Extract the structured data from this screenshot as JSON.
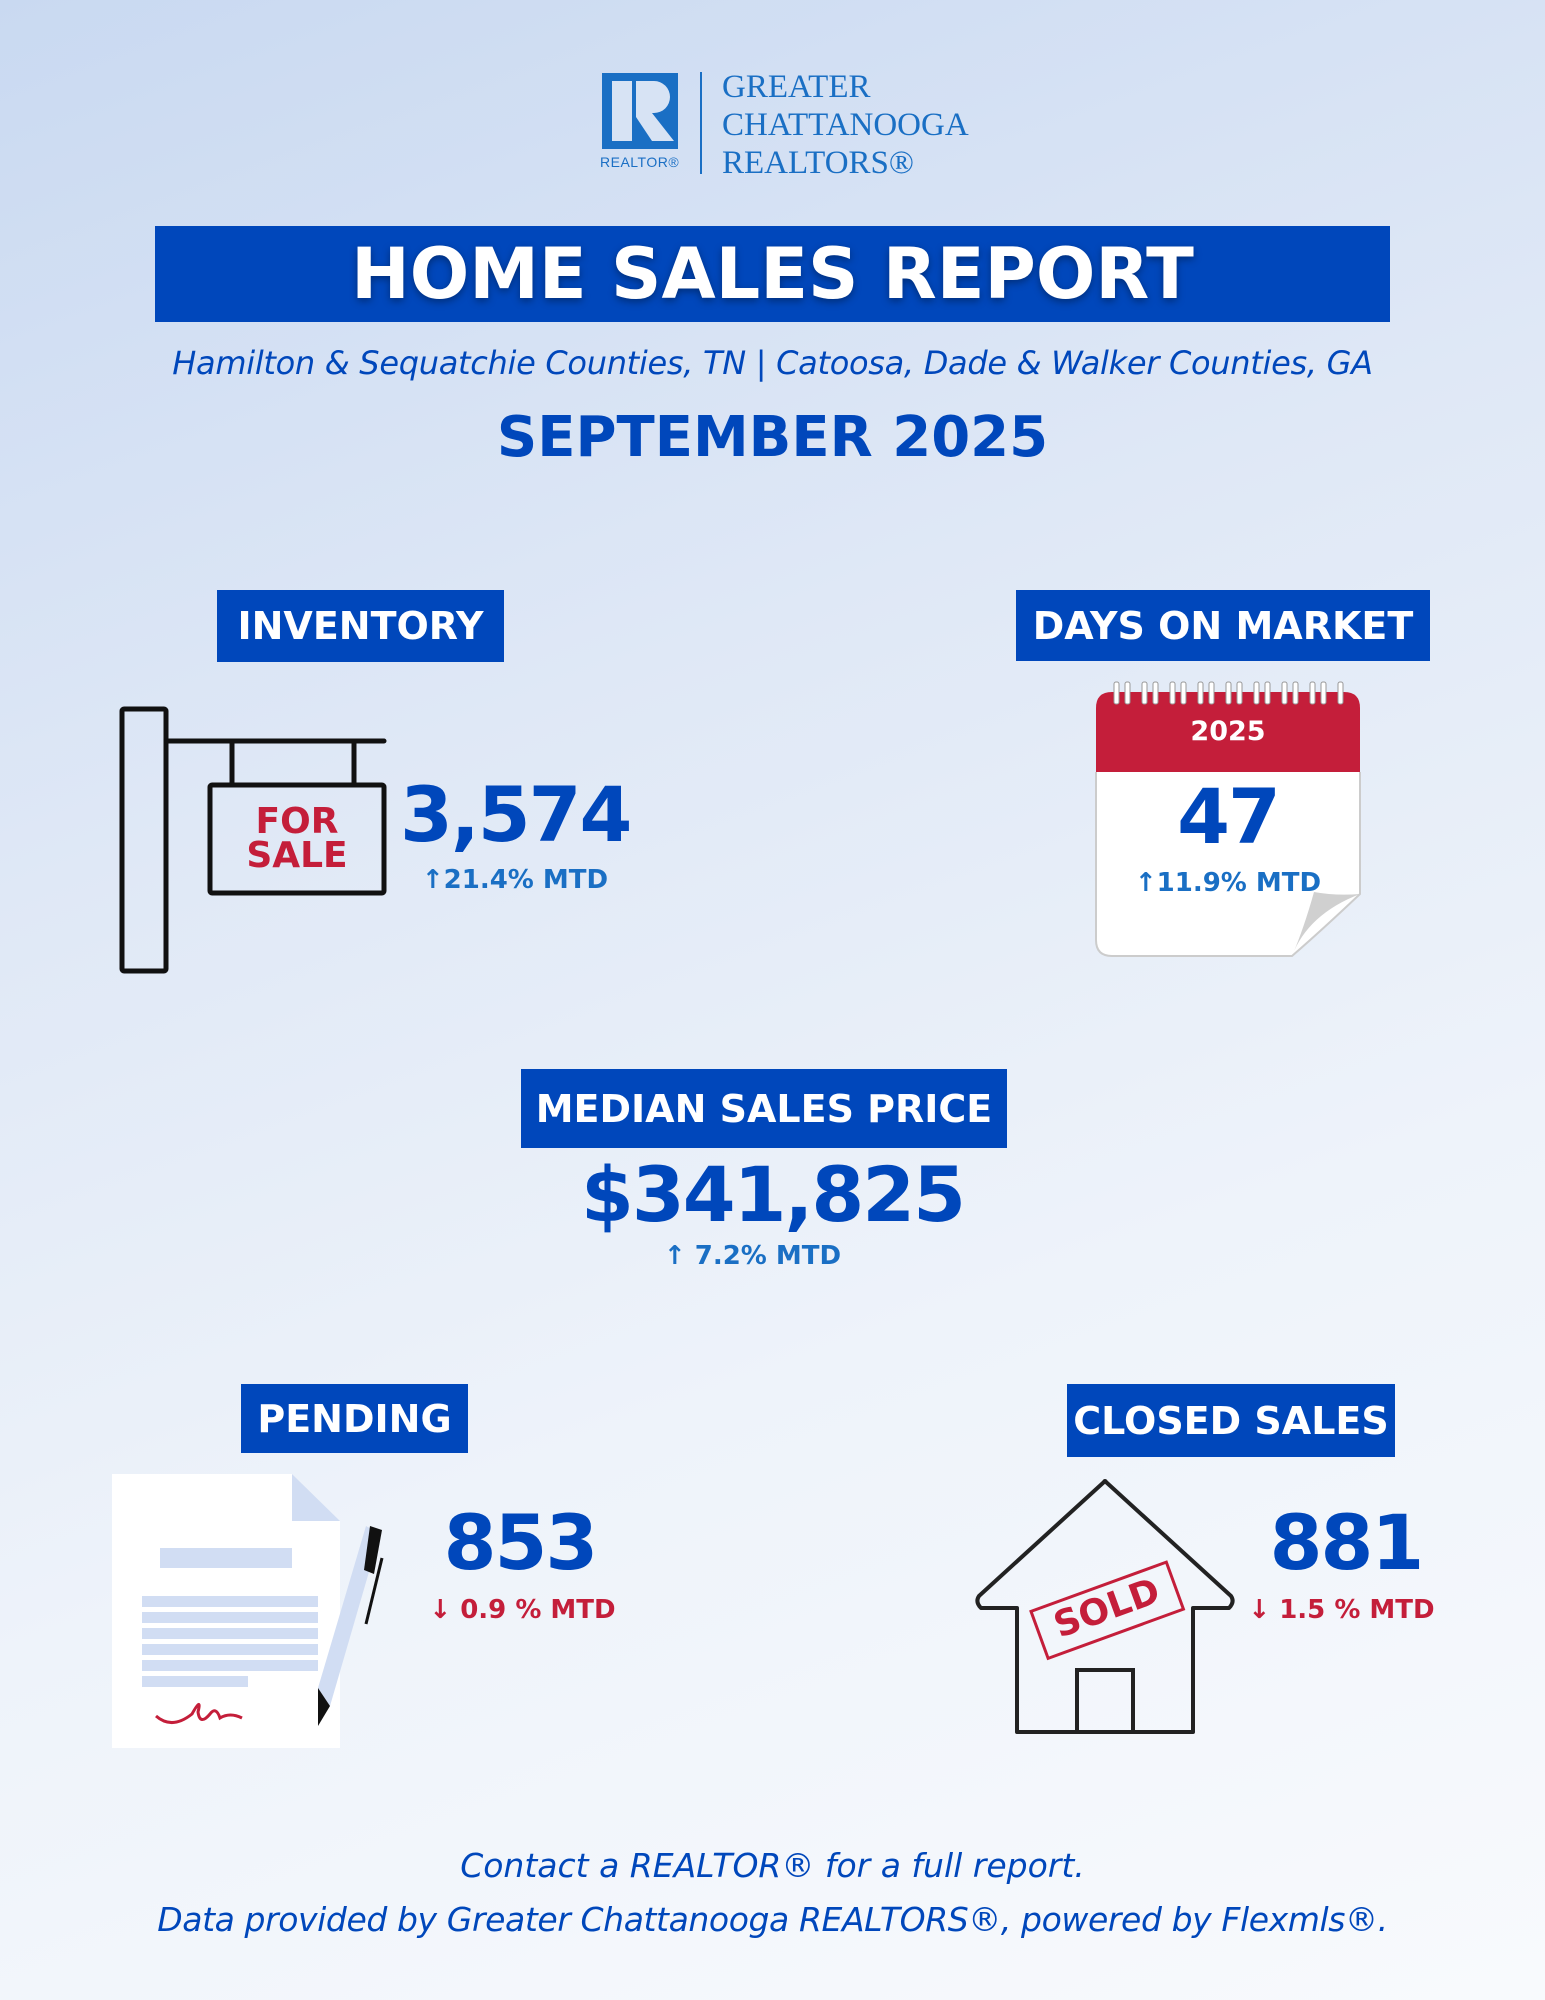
{
  "logo": {
    "mark_letter": "R",
    "mark_caption": "REALTOR®",
    "lines": [
      "GREATER",
      "CHATTANOOGA",
      "REALTORS®"
    ]
  },
  "header": {
    "title": "HOME SALES REPORT",
    "subtitle": "Hamilton & Sequatchie Counties, TN | Catoosa, Dade & Walker Counties, GA",
    "period": "SEPTEMBER 2025"
  },
  "colors": {
    "brand_blue": "#0047bb",
    "trend_up": "#1a6fc4",
    "trend_down": "#c41e3a",
    "sign_red": "#c41e3a"
  },
  "inventory": {
    "label": "INVENTORY",
    "value": "3,574",
    "trend": "↑21.4% MTD",
    "trend_direction": "up",
    "sign_text": [
      "FOR",
      "SALE"
    ],
    "icon": "for-sale-sign-icon"
  },
  "days_on_market": {
    "label": "DAYS ON MARKET",
    "value": "47",
    "trend": "↑11.9% MTD",
    "trend_direction": "up",
    "calendar_year": "2025",
    "icon": "calendar-icon"
  },
  "median_price": {
    "label": "MEDIAN SALES PRICE",
    "value": "$341,825",
    "trend": "↑ 7.2% MTD",
    "trend_direction": "up"
  },
  "pending": {
    "label": "PENDING",
    "value": "853",
    "trend": "↓ 0.9 % MTD",
    "trend_direction": "down",
    "icon": "signed-document-icon"
  },
  "closed_sales": {
    "label": "CLOSED SALES",
    "value": "881",
    "trend": "↓ 1.5 % MTD",
    "trend_direction": "down",
    "stamp_text": "SOLD",
    "icon": "sold-house-icon"
  },
  "footer": {
    "line1": "Contact a REALTOR® for a full report.",
    "line2": "Data provided by Greater Chattanooga REALTORS®, powered by Flexmls®."
  }
}
